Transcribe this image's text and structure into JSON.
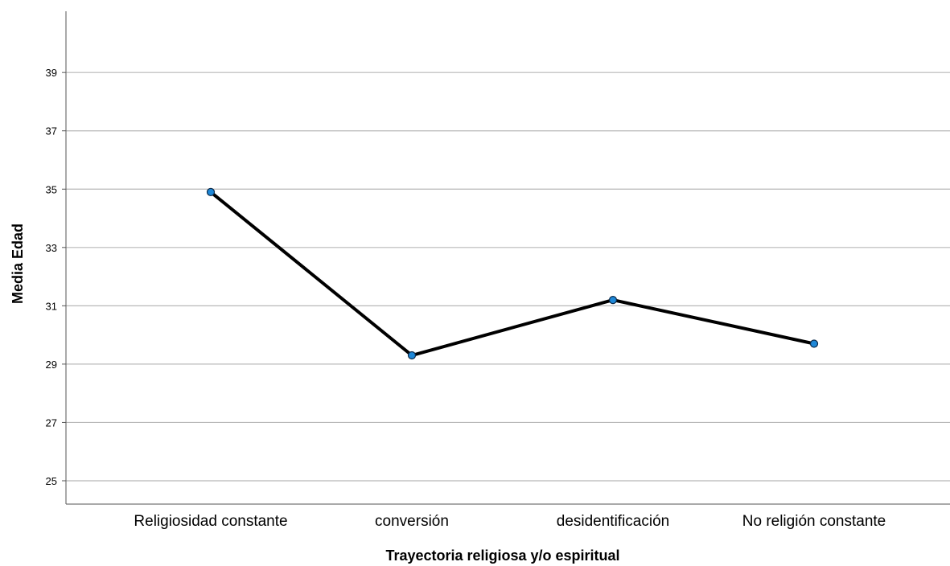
{
  "chart_data": {
    "type": "line",
    "xlabel": "Trayectoria religiosa y/o espiritual",
    "ylabel": "Media Edad",
    "categories": [
      "Religiosidad constante",
      "conversión",
      "desidentificación",
      "No religión constante"
    ],
    "series": [
      {
        "values": [
          34.9,
          29.3,
          31.2,
          29.7
        ]
      }
    ],
    "yticks": [
      25,
      27,
      29,
      31,
      33,
      35,
      37,
      39
    ],
    "ylim": [
      24.2,
      41.1
    ],
    "grid": true,
    "colors": {
      "line": "#000000",
      "marker_fill": "#1e88d8",
      "marker_stroke": "#0b2a4a",
      "grid": "#b8b8b8",
      "axis": "#555555"
    }
  }
}
